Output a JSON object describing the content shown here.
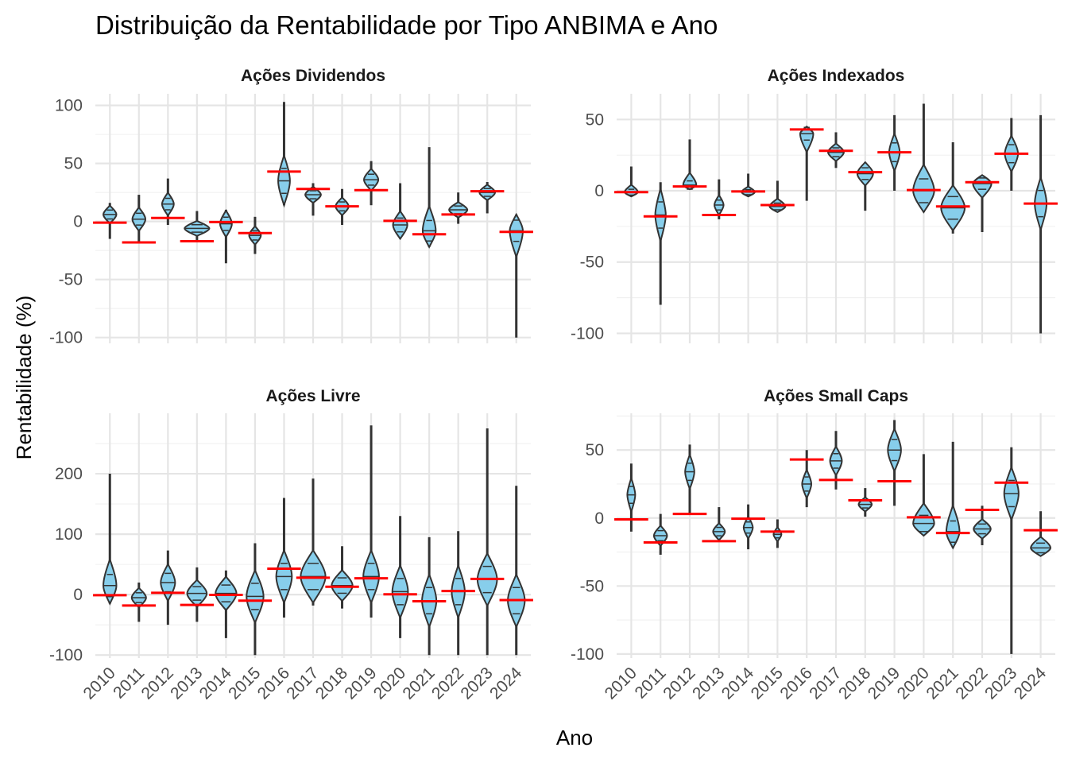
{
  "chart_data": {
    "type": "violin",
    "title": "Distribuição da Rentabilidade por Tipo ANBIMA e Ano",
    "xlabel": "Ano",
    "ylabel": "Rentabilidade (%)",
    "colors": {
      "violin_fill": "#87ceeb",
      "outline": "#333333",
      "reference_line": "#ff0000"
    },
    "years": [
      "2010",
      "2011",
      "2012",
      "2013",
      "2014",
      "2015",
      "2016",
      "2017",
      "2018",
      "2019",
      "2020",
      "2021",
      "2022",
      "2023",
      "2024"
    ],
    "reference_lines_note": "red horizontal segments per year (same values in all panels)",
    "reference_values": [
      -1,
      -18,
      3,
      -17,
      -0.5,
      -10,
      43,
      28,
      13,
      27,
      0.5,
      -11,
      6,
      26,
      -9
    ],
    "panels": [
      {
        "name": "Ações Dividendos",
        "ylim": [
          -105,
          110
        ],
        "yticks": [
          -100,
          -50,
          0,
          50,
          100
        ],
        "violins": [
          {
            "year": "2010",
            "min": -15,
            "max": 16,
            "mode": 6,
            "width": 0.5
          },
          {
            "year": "2011",
            "min": -18,
            "max": 23,
            "mode": 2,
            "width": 0.5
          },
          {
            "year": "2012",
            "min": -3,
            "max": 37,
            "mode": 15,
            "width": 0.45
          },
          {
            "year": "2013",
            "min": -17,
            "max": 9,
            "mode": -6,
            "width": 0.95
          },
          {
            "year": "2014",
            "min": -36,
            "max": 10,
            "mode": -2,
            "width": 0.45
          },
          {
            "year": "2015",
            "min": -28,
            "max": 4,
            "mode": -12,
            "width": 0.45
          },
          {
            "year": "2016",
            "min": 14,
            "max": 103,
            "mode": 35,
            "width": 0.45
          },
          {
            "year": "2017",
            "min": 5,
            "max": 33,
            "mode": 23,
            "width": 0.6
          },
          {
            "year": "2018",
            "min": -3,
            "max": 28,
            "mode": 13,
            "width": 0.5
          },
          {
            "year": "2019",
            "min": 14,
            "max": 52,
            "mode": 36,
            "width": 0.55
          },
          {
            "year": "2020",
            "min": -15,
            "max": 33,
            "mode": -3,
            "width": 0.55
          },
          {
            "year": "2021",
            "min": -22,
            "max": 64,
            "mode": -8,
            "width": 0.5
          },
          {
            "year": "2022",
            "min": -2,
            "max": 25,
            "mode": 10,
            "width": 0.7
          },
          {
            "year": "2023",
            "min": 7,
            "max": 34,
            "mode": 25,
            "width": 0.6
          },
          {
            "year": "2024",
            "min": -100,
            "max": 6,
            "mode": -8,
            "width": 0.5
          }
        ]
      },
      {
        "name": "Ações Indexados",
        "ylim": [
          -107,
          68
        ],
        "yticks": [
          -100,
          -50,
          0,
          50
        ],
        "violins": [
          {
            "year": "2010",
            "min": -4,
            "max": 17,
            "mode": -1,
            "width": 0.5
          },
          {
            "year": "2011",
            "min": -80,
            "max": 6,
            "mode": -17,
            "width": 0.4
          },
          {
            "year": "2012",
            "min": 1,
            "max": 36,
            "mode": 4,
            "width": 0.5
          },
          {
            "year": "2013",
            "min": -20,
            "max": 8,
            "mode": -10,
            "width": 0.35
          },
          {
            "year": "2014",
            "min": -4,
            "max": 12,
            "mode": -1,
            "width": 0.5
          },
          {
            "year": "2015",
            "min": -15,
            "max": 7,
            "mode": -11,
            "width": 0.6
          },
          {
            "year": "2016",
            "min": -7,
            "max": 45,
            "mode": 40,
            "width": 0.5
          },
          {
            "year": "2017",
            "min": 16,
            "max": 41,
            "mode": 27,
            "width": 0.6
          },
          {
            "year": "2018",
            "min": -14,
            "max": 20,
            "mode": 12,
            "width": 0.6
          },
          {
            "year": "2019",
            "min": 0,
            "max": 53,
            "mode": 27,
            "width": 0.4
          },
          {
            "year": "2020",
            "min": -15,
            "max": 61,
            "mode": 0,
            "width": 0.8
          },
          {
            "year": "2021",
            "min": -30,
            "max": 34,
            "mode": -12,
            "width": 0.9
          },
          {
            "year": "2022",
            "min": -29,
            "max": 11,
            "mode": 5,
            "width": 0.7
          },
          {
            "year": "2023",
            "min": 0,
            "max": 51,
            "mode": 26,
            "width": 0.5
          },
          {
            "year": "2024",
            "min": -100,
            "max": 53,
            "mode": -9,
            "width": 0.45
          }
        ]
      },
      {
        "name": "Ações Livre",
        "ylim": [
          -105,
          300
        ],
        "yticks": [
          -100,
          0,
          100,
          200
        ],
        "violins": [
          {
            "year": "2010",
            "min": -15,
            "max": 200,
            "mode": 15,
            "width": 0.5
          },
          {
            "year": "2011",
            "min": -45,
            "max": 20,
            "mode": -5,
            "width": 0.55
          },
          {
            "year": "2012",
            "min": -50,
            "max": 73,
            "mode": 20,
            "width": 0.55
          },
          {
            "year": "2013",
            "min": -45,
            "max": 45,
            "mode": 2,
            "width": 0.75
          },
          {
            "year": "2014",
            "min": -72,
            "max": 40,
            "mode": 2,
            "width": 0.8
          },
          {
            "year": "2015",
            "min": -100,
            "max": 85,
            "mode": -3,
            "width": 0.65
          },
          {
            "year": "2016",
            "min": -38,
            "max": 160,
            "mode": 30,
            "width": 0.6
          },
          {
            "year": "2017",
            "min": -18,
            "max": 192,
            "mode": 30,
            "width": 0.95
          },
          {
            "year": "2018",
            "min": -23,
            "max": 80,
            "mode": 15,
            "width": 0.8
          },
          {
            "year": "2019",
            "min": -38,
            "max": 280,
            "mode": 30,
            "width": 0.6
          },
          {
            "year": "2020",
            "min": -72,
            "max": 130,
            "mode": 5,
            "width": 0.6
          },
          {
            "year": "2021",
            "min": -100,
            "max": 95,
            "mode": -10,
            "width": 0.55
          },
          {
            "year": "2022",
            "min": -100,
            "max": 105,
            "mode": 5,
            "width": 0.5
          },
          {
            "year": "2023",
            "min": -100,
            "max": 275,
            "mode": 25,
            "width": 0.75
          },
          {
            "year": "2024",
            "min": -100,
            "max": 180,
            "mode": -10,
            "width": 0.65
          }
        ]
      },
      {
        "name": "Ações Small Caps",
        "ylim": [
          -103,
          77
        ],
        "yticks": [
          -100,
          -50,
          0,
          50
        ],
        "violins": [
          {
            "year": "2010",
            "min": -10,
            "max": 40,
            "mode": 17,
            "width": 0.3
          },
          {
            "year": "2011",
            "min": -27,
            "max": 3,
            "mode": -13,
            "width": 0.5
          },
          {
            "year": "2012",
            "min": 3,
            "max": 54,
            "mode": 34,
            "width": 0.35
          },
          {
            "year": "2013",
            "min": -17,
            "max": 8,
            "mode": -10,
            "width": 0.45
          },
          {
            "year": "2014",
            "min": -23,
            "max": 10,
            "mode": -7,
            "width": 0.35
          },
          {
            "year": "2015",
            "min": -22,
            "max": -1,
            "mode": -12,
            "width": 0.3
          },
          {
            "year": "2016",
            "min": 8,
            "max": 50,
            "mode": 25,
            "width": 0.35
          },
          {
            "year": "2017",
            "min": 21,
            "max": 64,
            "mode": 42,
            "width": 0.45
          },
          {
            "year": "2018",
            "min": 1,
            "max": 22,
            "mode": 10,
            "width": 0.5
          },
          {
            "year": "2019",
            "min": 9,
            "max": 72,
            "mode": 50,
            "width": 0.5
          },
          {
            "year": "2020",
            "min": -13,
            "max": 47,
            "mode": -4,
            "width": 0.8
          },
          {
            "year": "2021",
            "min": -22,
            "max": 56,
            "mode": -10,
            "width": 0.5
          },
          {
            "year": "2022",
            "min": -20,
            "max": 9,
            "mode": -8,
            "width": 0.65
          },
          {
            "year": "2023",
            "min": -100,
            "max": 52,
            "mode": 18,
            "width": 0.55
          },
          {
            "year": "2024",
            "min": -28,
            "max": 5,
            "mode": -22,
            "width": 0.75
          }
        ]
      }
    ]
  }
}
